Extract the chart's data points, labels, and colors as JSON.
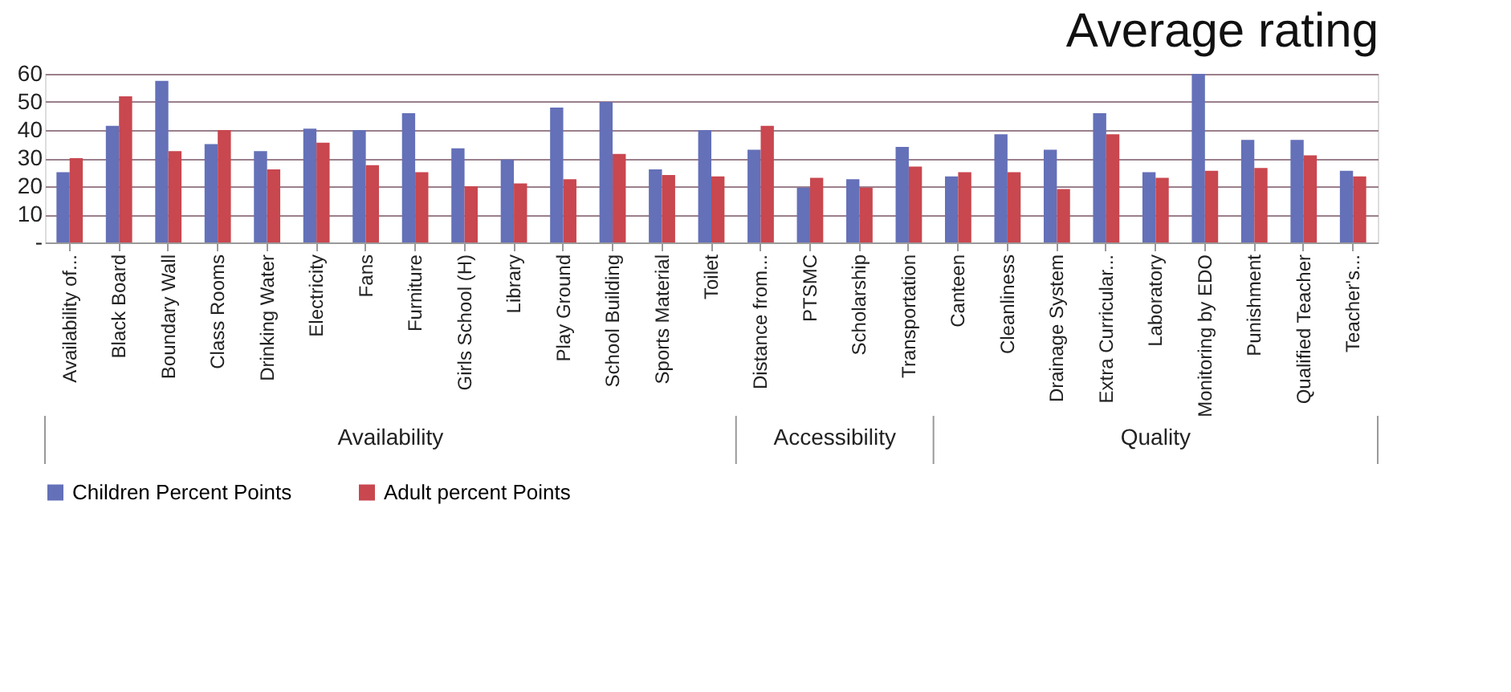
{
  "chart_data": {
    "type": "bar",
    "title": "Average rating",
    "categories": [
      "Availability of...",
      "Black Board",
      "Boundary Wall",
      "Class Rooms",
      "Drinking Water",
      "Electricity",
      "Fans",
      "Furniture",
      "Girls School (H)",
      "Library",
      "Play Ground",
      "School Building",
      "Sports Material",
      "Toilet",
      "Distance from...",
      "PTSMC",
      "Scholarship",
      "Transportation",
      "Canteen",
      "Cleanliness",
      "Drainage System",
      "Extra Curricular...",
      "Laboratory",
      "Monitoring by EDO",
      "Punishment",
      "Qualified Teacher",
      "Teacher's..."
    ],
    "series": [
      {
        "name": "Children Percent Points",
        "color": "#6470b8",
        "values": [
          25,
          41.5,
          57.5,
          35,
          32.5,
          40.5,
          40,
          46,
          33.5,
          29.5,
          48,
          50,
          26,
          40,
          33,
          19.5,
          22.5,
          34,
          23.5,
          38.5,
          33,
          46,
          25,
          60,
          36.5,
          36.5,
          25.5
        ]
      },
      {
        "name": "Adult percent Points",
        "color": "#c9474f",
        "values": [
          30,
          52,
          32.5,
          40,
          26,
          35.5,
          27.5,
          25,
          20,
          21,
          22.5,
          31.5,
          24,
          23.5,
          41.5,
          23,
          19.5,
          27,
          25,
          25,
          19,
          38.5,
          23,
          25.5,
          26.5,
          31,
          23.5
        ]
      }
    ],
    "ylim": [
      0,
      60
    ],
    "yticks": [
      {
        "value": 0,
        "label": "-"
      },
      10,
      20,
      30,
      40,
      50,
      60
    ],
    "grid": "y",
    "legend": "bottom",
    "annotations": [
      "Availability",
      "Accessibility",
      "Quality"
    ]
  }
}
